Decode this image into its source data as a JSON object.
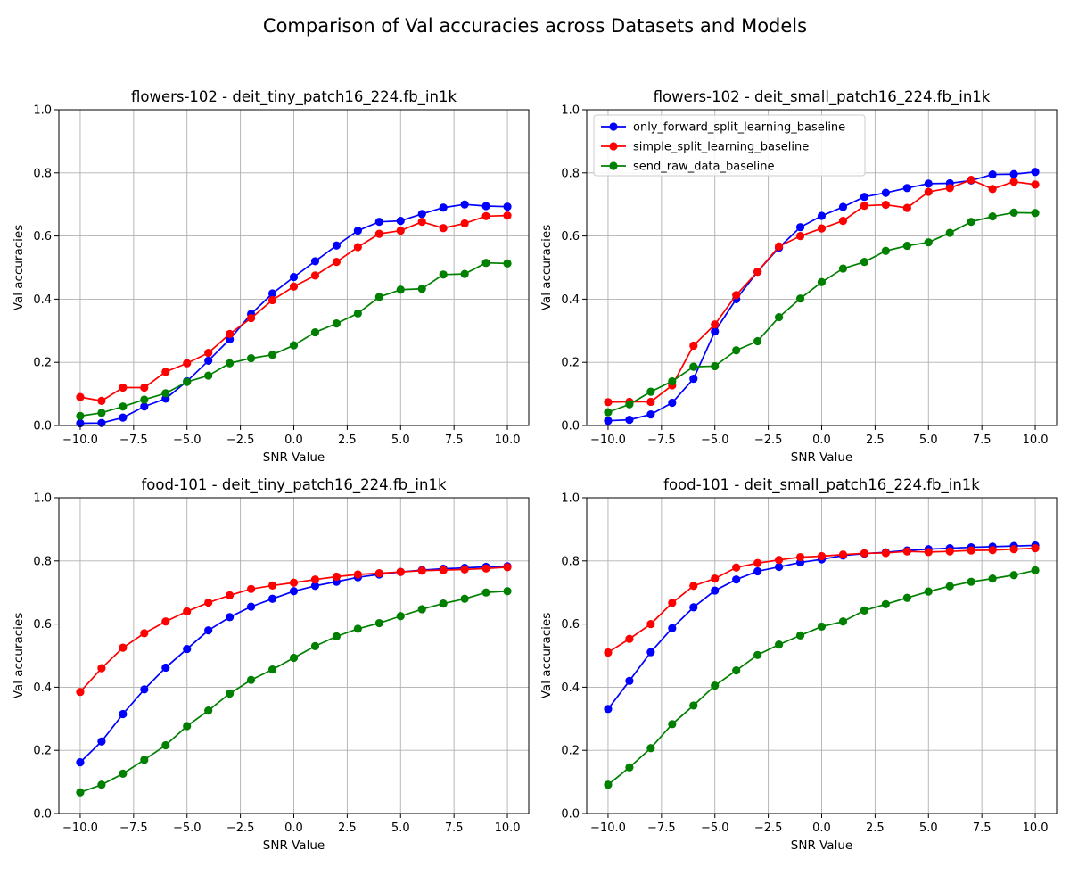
{
  "figure": {
    "title": "Comparison of Val accuracies across Datasets and Models"
  },
  "colors": {
    "only_forward_split_learning_baseline": "#0000ff",
    "simple_split_learning_baseline": "#ff0000",
    "send_raw_data_baseline": "#008000",
    "grid": "#b0b0b0",
    "axes": "#000000"
  },
  "legend": {
    "placement": "upper-left",
    "shown_in_panel": 1
  },
  "chart_data": [
    {
      "type": "line",
      "title": "flowers-102 - deit_tiny_patch16_224.fb_in1k",
      "xlabel": "SNR Value",
      "ylabel": "Val accuracies",
      "xlim": [
        -11,
        11
      ],
      "ylim": [
        0,
        1
      ],
      "xticks": [
        -10,
        -7.5,
        -5,
        -2.5,
        0,
        2.5,
        5,
        7.5,
        10
      ],
      "xtick_labels": [
        "−10.0",
        "−7.5",
        "−5.0",
        "−2.5",
        "0.0",
        "2.5",
        "5.0",
        "7.5",
        "10.0"
      ],
      "yticks": [
        0,
        0.2,
        0.4,
        0.6,
        0.8,
        1.0
      ],
      "ytick_labels": [
        "0.0",
        "0.2",
        "0.4",
        "0.6",
        "0.8",
        "1.0"
      ],
      "grid": true,
      "x": [
        -10,
        -9,
        -8,
        -7,
        -6,
        -5,
        -4,
        -3,
        -2,
        -1,
        0,
        1,
        2,
        3,
        4,
        5,
        6,
        7,
        8,
        9,
        10
      ],
      "series": [
        {
          "name": "only_forward_split_learning_baseline",
          "color": "#0000ff",
          "values": [
            0.007,
            0.008,
            0.025,
            0.06,
            0.085,
            0.14,
            0.205,
            0.273,
            0.353,
            0.418,
            0.47,
            0.52,
            0.57,
            0.617,
            0.645,
            0.648,
            0.67,
            0.69,
            0.7,
            0.695,
            0.693
          ]
        },
        {
          "name": "simple_split_learning_baseline",
          "color": "#ff0000",
          "values": [
            0.09,
            0.078,
            0.12,
            0.12,
            0.17,
            0.197,
            0.23,
            0.29,
            0.34,
            0.397,
            0.44,
            0.475,
            0.518,
            0.565,
            0.607,
            0.617,
            0.645,
            0.625,
            0.64,
            0.663,
            0.665
          ]
        },
        {
          "name": "send_raw_data_baseline",
          "color": "#008000",
          "values": [
            0.03,
            0.04,
            0.06,
            0.082,
            0.102,
            0.138,
            0.158,
            0.197,
            0.213,
            0.224,
            0.254,
            0.295,
            0.323,
            0.355,
            0.407,
            0.43,
            0.433,
            0.478,
            0.48,
            0.515,
            0.513
          ]
        }
      ]
    },
    {
      "type": "line",
      "title": "flowers-102 - deit_small_patch16_224.fb_in1k",
      "xlabel": "SNR Value",
      "ylabel": "Val accuracies",
      "xlim": [
        -11,
        11
      ],
      "ylim": [
        0,
        1
      ],
      "xticks": [
        -10,
        -7.5,
        -5,
        -2.5,
        0,
        2.5,
        5,
        7.5,
        10
      ],
      "xtick_labels": [
        "−10.0",
        "−7.5",
        "−5.0",
        "−2.5",
        "0.0",
        "2.5",
        "5.0",
        "7.5",
        "10.0"
      ],
      "yticks": [
        0,
        0.2,
        0.4,
        0.6,
        0.8,
        1.0
      ],
      "ytick_labels": [
        "0.0",
        "0.2",
        "0.4",
        "0.6",
        "0.8",
        "1.0"
      ],
      "grid": true,
      "x": [
        -10,
        -9,
        -8,
        -7,
        -6,
        -5,
        -4,
        -3,
        -2,
        -1,
        0,
        1,
        2,
        3,
        4,
        5,
        6,
        7,
        8,
        9,
        10
      ],
      "series": [
        {
          "name": "only_forward_split_learning_baseline",
          "color": "#0000ff",
          "values": [
            0.015,
            0.018,
            0.035,
            0.072,
            0.148,
            0.298,
            0.4,
            0.487,
            0.563,
            0.628,
            0.664,
            0.692,
            0.724,
            0.737,
            0.752,
            0.766,
            0.767,
            0.776,
            0.795,
            0.796,
            0.803
          ]
        },
        {
          "name": "simple_split_learning_baseline",
          "color": "#ff0000",
          "values": [
            0.074,
            0.075,
            0.075,
            0.127,
            0.253,
            0.32,
            0.413,
            0.487,
            0.567,
            0.6,
            0.624,
            0.648,
            0.696,
            0.699,
            0.689,
            0.74,
            0.752,
            0.778,
            0.749,
            0.772,
            0.763
          ]
        },
        {
          "name": "send_raw_data_baseline",
          "color": "#008000",
          "values": [
            0.042,
            0.067,
            0.107,
            0.14,
            0.186,
            0.188,
            0.238,
            0.267,
            0.343,
            0.402,
            0.454,
            0.497,
            0.518,
            0.553,
            0.569,
            0.58,
            0.61,
            0.645,
            0.662,
            0.674,
            0.673
          ]
        }
      ]
    },
    {
      "type": "line",
      "title": "food-101 - deit_tiny_patch16_224.fb_in1k",
      "xlabel": "SNR Value",
      "ylabel": "Val accuracies",
      "xlim": [
        -11,
        11
      ],
      "ylim": [
        0,
        1
      ],
      "xticks": [
        -10,
        -7.5,
        -5,
        -2.5,
        0,
        2.5,
        5,
        7.5,
        10
      ],
      "xtick_labels": [
        "−10.0",
        "−7.5",
        "−5.0",
        "−2.5",
        "0.0",
        "2.5",
        "5.0",
        "7.5",
        "10.0"
      ],
      "yticks": [
        0,
        0.2,
        0.4,
        0.6,
        0.8,
        1.0
      ],
      "ytick_labels": [
        "0.0",
        "0.2",
        "0.4",
        "0.6",
        "0.8",
        "1.0"
      ],
      "grid": true,
      "x": [
        -10,
        -9,
        -8,
        -7,
        -6,
        -5,
        -4,
        -3,
        -2,
        -1,
        0,
        1,
        2,
        3,
        4,
        5,
        6,
        7,
        8,
        9,
        10
      ],
      "series": [
        {
          "name": "only_forward_split_learning_baseline",
          "color": "#0000ff",
          "values": [
            0.162,
            0.228,
            0.315,
            0.393,
            0.462,
            0.521,
            0.58,
            0.622,
            0.655,
            0.68,
            0.704,
            0.721,
            0.734,
            0.748,
            0.757,
            0.765,
            0.771,
            0.775,
            0.778,
            0.781,
            0.783
          ]
        },
        {
          "name": "simple_split_learning_baseline",
          "color": "#ff0000",
          "values": [
            0.385,
            0.46,
            0.525,
            0.571,
            0.608,
            0.64,
            0.668,
            0.691,
            0.711,
            0.722,
            0.731,
            0.741,
            0.75,
            0.757,
            0.761,
            0.765,
            0.769,
            0.771,
            0.773,
            0.776,
            0.78
          ]
        },
        {
          "name": "send_raw_data_baseline",
          "color": "#008000",
          "values": [
            0.067,
            0.091,
            0.126,
            0.17,
            0.216,
            0.277,
            0.326,
            0.38,
            0.423,
            0.456,
            0.493,
            0.53,
            0.561,
            0.585,
            0.603,
            0.625,
            0.647,
            0.665,
            0.68,
            0.7,
            0.704
          ]
        }
      ]
    },
    {
      "type": "line",
      "title": "food-101 - deit_small_patch16_224.fb_in1k",
      "xlabel": "SNR Value",
      "ylabel": "Val accuracies",
      "xlim": [
        -11,
        11
      ],
      "ylim": [
        0,
        1
      ],
      "xticks": [
        -10,
        -7.5,
        -5,
        -2.5,
        0,
        2.5,
        5,
        7.5,
        10
      ],
      "xtick_labels": [
        "−10.0",
        "−7.5",
        "−5.0",
        "−2.5",
        "0.0",
        "2.5",
        "5.0",
        "7.5",
        "10.0"
      ],
      "yticks": [
        0,
        0.2,
        0.4,
        0.6,
        0.8,
        1.0
      ],
      "ytick_labels": [
        "0.0",
        "0.2",
        "0.4",
        "0.6",
        "0.8",
        "1.0"
      ],
      "grid": true,
      "x": [
        -10,
        -9,
        -8,
        -7,
        -6,
        -5,
        -4,
        -3,
        -2,
        -1,
        0,
        1,
        2,
        3,
        4,
        5,
        6,
        7,
        8,
        9,
        10
      ],
      "series": [
        {
          "name": "only_forward_split_learning_baseline",
          "color": "#0000ff",
          "values": [
            0.331,
            0.42,
            0.511,
            0.587,
            0.653,
            0.706,
            0.741,
            0.767,
            0.781,
            0.795,
            0.805,
            0.817,
            0.823,
            0.827,
            0.833,
            0.837,
            0.84,
            0.843,
            0.845,
            0.847,
            0.849
          ]
        },
        {
          "name": "simple_split_learning_baseline",
          "color": "#ff0000",
          "values": [
            0.51,
            0.553,
            0.6,
            0.667,
            0.721,
            0.744,
            0.779,
            0.793,
            0.803,
            0.812,
            0.815,
            0.82,
            0.824,
            0.825,
            0.83,
            0.828,
            0.83,
            0.833,
            0.834,
            0.837,
            0.84
          ]
        },
        {
          "name": "send_raw_data_baseline",
          "color": "#008000",
          "values": [
            0.091,
            0.146,
            0.207,
            0.283,
            0.342,
            0.405,
            0.453,
            0.502,
            0.535,
            0.564,
            0.592,
            0.608,
            0.643,
            0.663,
            0.683,
            0.703,
            0.72,
            0.734,
            0.744,
            0.755,
            0.77
          ]
        }
      ]
    }
  ]
}
